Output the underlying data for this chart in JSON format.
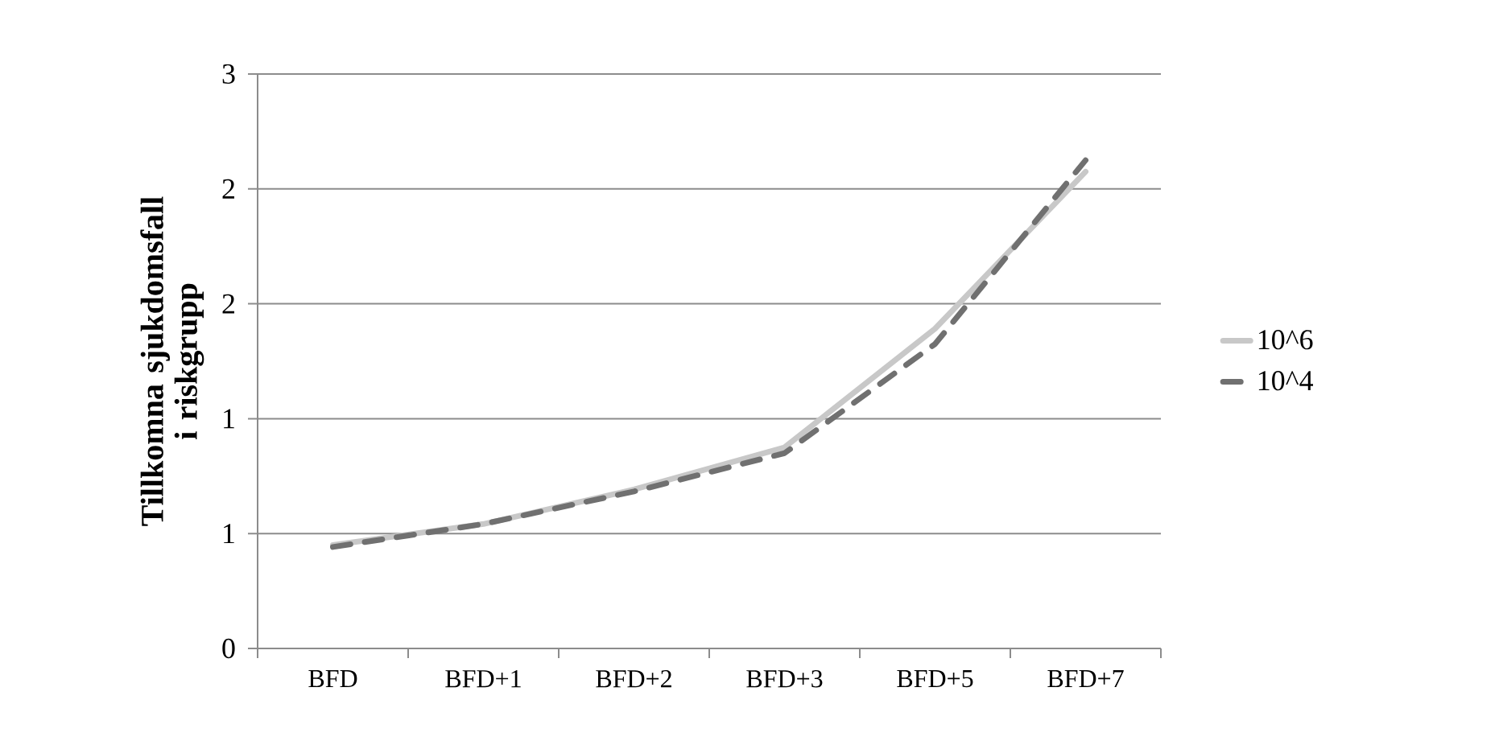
{
  "chart_data": {
    "type": "line",
    "ylabel": "Tillkomna sjukdomsfall i riskgrupp",
    "categories": [
      "BFD",
      "BFD+1",
      "BFD+2",
      "BFD+3",
      "BFD+5",
      "BFD+7"
    ],
    "series": [
      {
        "name": "10^6",
        "color": "#c8c8c8",
        "line_style": "solid",
        "values": [
          0.54,
          0.65,
          0.83,
          1.05,
          1.67,
          2.49
        ]
      },
      {
        "name": "10^4",
        "color": "#707070",
        "line_style": "dashed",
        "values": [
          0.53,
          0.65,
          0.82,
          1.02,
          1.59,
          2.55
        ]
      }
    ],
    "ylim": [
      0,
      3
    ],
    "yticks": [
      0,
      {
        "value": 0.6,
        "label": "1"
      },
      {
        "value": 1.2,
        "label": "1"
      },
      {
        "value": 1.8,
        "label": "2"
      },
      {
        "value": 2.4,
        "label": "2"
      },
      3
    ],
    "grid": "y",
    "legend": "right",
    "marker": "none"
  }
}
